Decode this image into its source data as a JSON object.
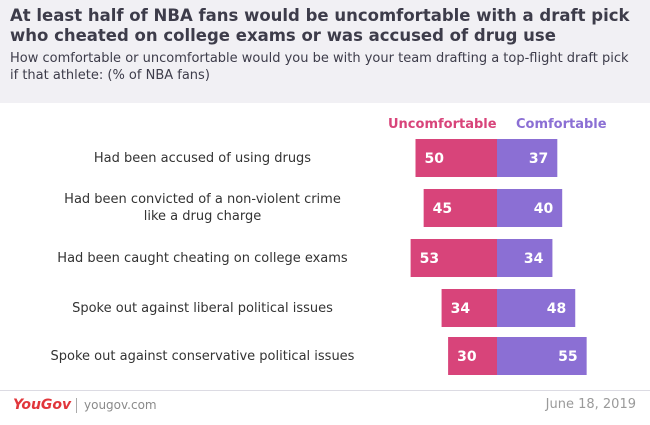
{
  "header": {
    "title": "At least half of NBA fans would be uncomfortable with a draft pick who cheated on college exams or was accused of drug use",
    "subtitle": "How comfortable or uncomfortable would you be with your team drafting a top-flight draft pick if that athlete: (% of NBA fans)"
  },
  "chart_data": {
    "type": "bar",
    "orientation": "horizontal-diverging",
    "categories": [
      "Had been accused of using drugs",
      "Had been convicted of a non-violent crime like a drug charge",
      "Had been caught cheating on college exams",
      "Spoke out against liberal political issues",
      "Spoke out against conservative political issues"
    ],
    "category_lines": [
      [
        "Had been accused of using drugs"
      ],
      [
        "Had been convicted of a non-violent crime",
        "like a drug charge"
      ],
      [
        "Had been caught cheating on college exams"
      ],
      [
        "Spoke out against liberal political issues"
      ],
      [
        "Spoke out against conservative political issues"
      ]
    ],
    "series": [
      {
        "name": "Uncomfortable",
        "color": "#d8447a",
        "values": [
          50,
          45,
          53,
          34,
          30
        ]
      },
      {
        "name": "Comfortable",
        "color": "#8b6fd4",
        "values": [
          37,
          40,
          34,
          48,
          55
        ]
      }
    ],
    "title": "At least half of NBA fans would be uncomfortable with a draft pick who cheated on college exams or was accused of drug use",
    "xlabel": "",
    "ylabel": "% of NBA fans"
  },
  "footer": {
    "logo": "YouGov",
    "site": "yougov.com",
    "date": "June 18, 2019"
  }
}
